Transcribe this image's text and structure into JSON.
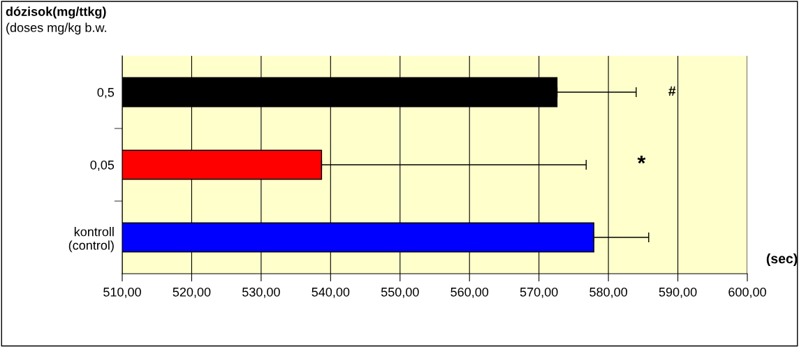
{
  "chart_data": {
    "type": "bar",
    "orientation": "horizontal",
    "ylabel": "dózisok(mg/ttkg)\n(doses mg/kg b.w.",
    "xlabel": "(sec)",
    "categories": [
      "0,5",
      "0,05",
      "kontroll\n(control)"
    ],
    "values": [
      572.6,
      538.7,
      577.9
    ],
    "colors": [
      "#000000",
      "#ff0000",
      "#0000ff"
    ],
    "errors": [
      [
        572.6,
        584.0
      ],
      [
        538.7,
        576.8
      ],
      [
        577.9,
        585.8
      ]
    ],
    "xlim": [
      510,
      600
    ],
    "xticks": [
      {
        "value": 510,
        "label": "510,00"
      },
      {
        "value": 520,
        "label": "520,00"
      },
      {
        "value": 530,
        "label": "530,00"
      },
      {
        "value": 540,
        "label": "540,00"
      },
      {
        "value": 550,
        "label": "550,00"
      },
      {
        "value": 560,
        "label": "560,00"
      },
      {
        "value": 570,
        "label": "570,00"
      },
      {
        "value": 580,
        "label": "580,00"
      },
      {
        "value": 590,
        "label": "590,00"
      },
      {
        "value": 600,
        "label": "600,00"
      }
    ],
    "grid": "x",
    "annotations": [
      "#",
      "*"
    ]
  }
}
